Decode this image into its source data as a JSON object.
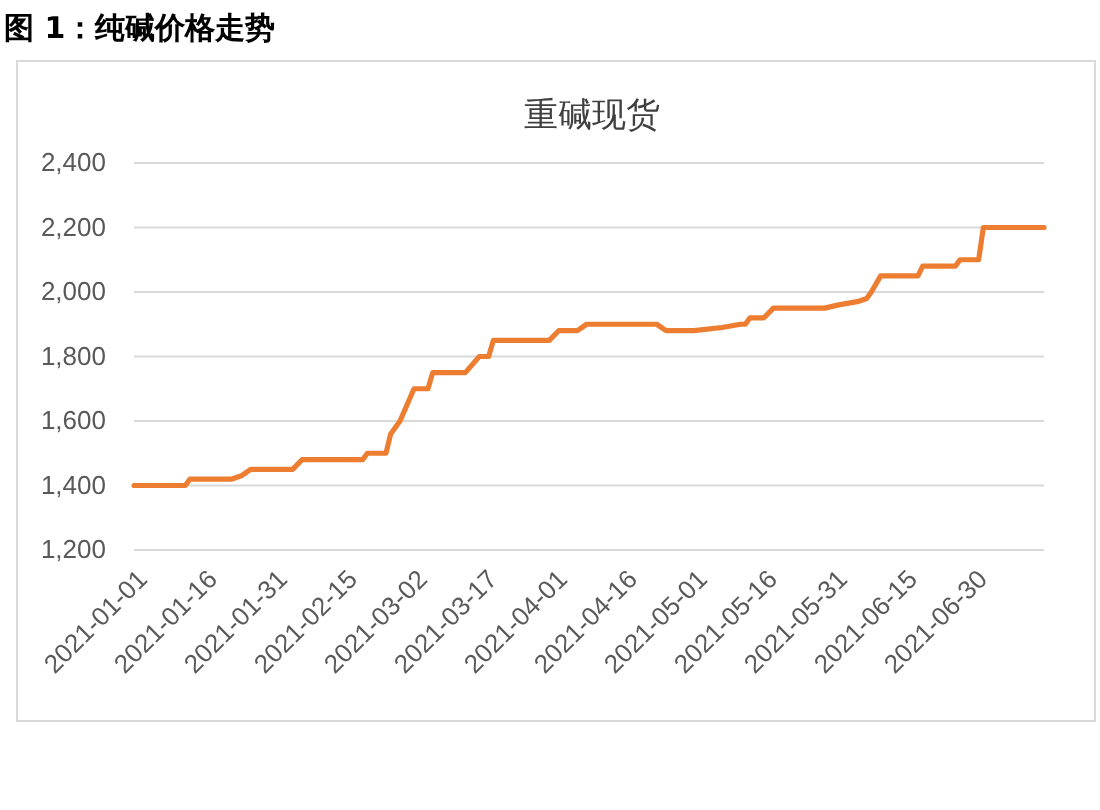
{
  "chart_data": {
    "type": "line",
    "title": "图 1：纯碱价格走势",
    "subtitle": "重碱现货",
    "x": [
      "2021-01-01",
      "2021-01-12",
      "2021-01-13",
      "2021-01-22",
      "2021-01-24",
      "2021-01-26",
      "2021-02-04",
      "2021-02-06",
      "2021-02-19",
      "2021-02-20",
      "2021-02-24",
      "2021-02-25",
      "2021-02-27",
      "2021-03-02",
      "2021-03-05",
      "2021-03-06",
      "2021-03-13",
      "2021-03-16",
      "2021-03-18",
      "2021-03-19",
      "2021-03-31",
      "2021-04-02",
      "2021-04-06",
      "2021-04-08",
      "2021-04-23",
      "2021-04-25",
      "2021-05-01",
      "2021-05-07",
      "2021-05-11",
      "2021-05-12",
      "2021-05-13",
      "2021-05-16",
      "2021-05-18",
      "2021-05-29",
      "2021-06-01",
      "2021-06-05",
      "2021-06-07",
      "2021-06-08",
      "2021-06-10",
      "2021-06-18",
      "2021-06-19",
      "2021-06-26",
      "2021-06-27",
      "2021-07-01",
      "2021-07-02",
      "2021-07-15"
    ],
    "values": [
      1400,
      1400,
      1420,
      1420,
      1430,
      1450,
      1450,
      1480,
      1480,
      1500,
      1500,
      1560,
      1600,
      1700,
      1700,
      1750,
      1750,
      1800,
      1800,
      1850,
      1850,
      1880,
      1880,
      1900,
      1900,
      1880,
      1880,
      1890,
      1900,
      1900,
      1920,
      1920,
      1950,
      1950,
      1960,
      1970,
      1980,
      2000,
      2050,
      2050,
      2080,
      2080,
      2100,
      2100,
      2200,
      2200
    ],
    "color": "#ed7d31",
    "xlim": [
      "2021-01-01",
      "2021-07-15"
    ],
    "xticks": [
      "2021-01-01",
      "2021-01-16",
      "2021-01-31",
      "2021-02-15",
      "2021-03-02",
      "2021-03-17",
      "2021-04-01",
      "2021-04-16",
      "2021-05-01",
      "2021-05-16",
      "2021-05-31",
      "2021-06-15",
      "2021-06-30"
    ],
    "ylim": [
      1200,
      2400
    ],
    "yticks": [
      {
        "value": 1200,
        "label": "1,200"
      },
      {
        "value": 1400,
        "label": "1,400"
      },
      {
        "value": 1600,
        "label": "1,600"
      },
      {
        "value": 1800,
        "label": "1,800"
      },
      {
        "value": 2000,
        "label": "2,000"
      },
      {
        "value": 2200,
        "label": "2,200"
      },
      {
        "value": 2400,
        "label": "2,400"
      }
    ],
    "grid": "y",
    "marker": "none",
    "line_style": "solid"
  }
}
